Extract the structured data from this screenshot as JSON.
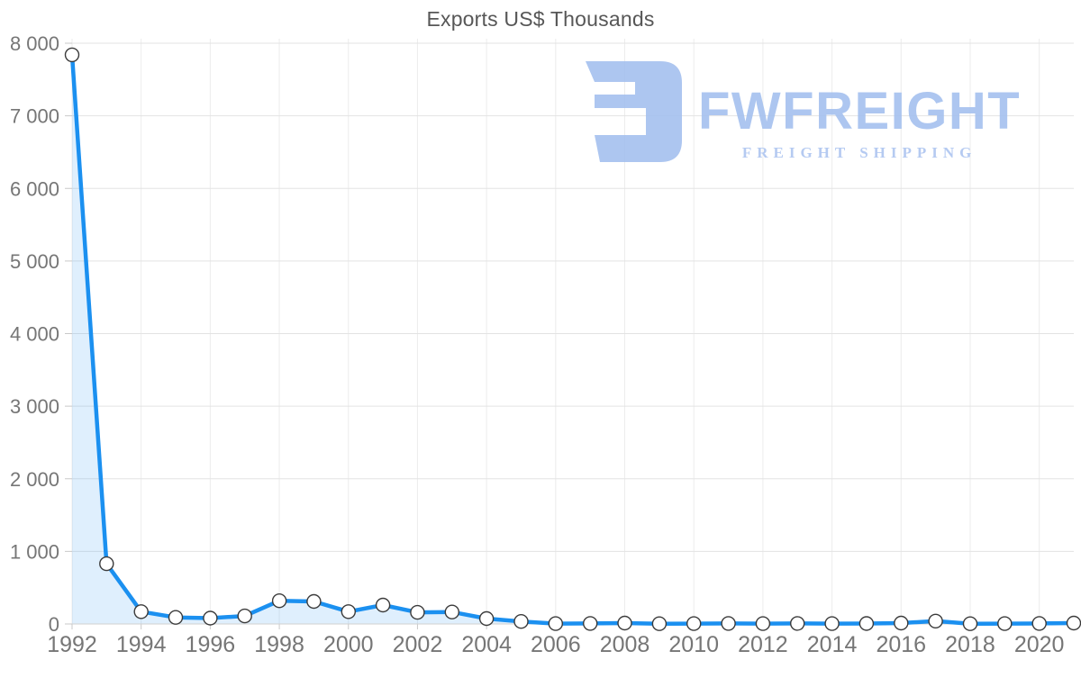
{
  "logo": {
    "brand": "FWFREIGHT",
    "tagline": "FREIGHT SHIPPING",
    "color": "#a7c2ef",
    "tagline_color": "#b0c7f1",
    "mark_icon": "freight-f-mark-icon"
  },
  "chart_data": {
    "type": "area",
    "title": "Exports US$ Thousands",
    "xlabel": "",
    "ylabel": "",
    "x": [
      1992,
      1993,
      1994,
      1995,
      1996,
      1997,
      1998,
      1999,
      2000,
      2001,
      2002,
      2003,
      2004,
      2005,
      2006,
      2007,
      2008,
      2009,
      2010,
      2011,
      2012,
      2013,
      2014,
      2015,
      2016,
      2017,
      2018,
      2019,
      2020,
      2021
    ],
    "values": [
      7840,
      830,
      170,
      90,
      80,
      110,
      320,
      310,
      170,
      260,
      160,
      165,
      75,
      35,
      5,
      8,
      12,
      4,
      5,
      8,
      5,
      8,
      5,
      6,
      12,
      40,
      4,
      5,
      8,
      12
    ],
    "ylim": [
      0,
      8000
    ],
    "y_ticks": [
      0,
      1000,
      2000,
      3000,
      4000,
      5000,
      6000,
      7000,
      8000
    ],
    "y_tick_labels": [
      "0",
      "1 000",
      "2 000",
      "3 000",
      "4 000",
      "5 000",
      "6 000",
      "7 000",
      "8 000"
    ],
    "x_ticks": [
      1992,
      1994,
      1996,
      1998,
      2000,
      2002,
      2004,
      2006,
      2008,
      2010,
      2012,
      2014,
      2016,
      2018,
      2020
    ],
    "x_tick_labels": [
      "1992",
      "1994",
      "1996",
      "1998",
      "2000",
      "2002",
      "2004",
      "2006",
      "2008",
      "2010",
      "2012",
      "2014",
      "2016",
      "2018",
      "2020"
    ],
    "grid": "on",
    "legend": "none",
    "line_color": "#1b90f0",
    "fill_color": "rgba(30, 144, 240, 0.14)",
    "marker_fill": "#ffffff",
    "marker_stroke": "#3b3b3b",
    "grid_color_h": "#e3e3e3",
    "grid_color_v": "#ececec",
    "axis_line_color": "#d0d0d0",
    "tick_color": "#c9c9c9",
    "tick_label_color": "#767676",
    "title_color": "#575757"
  }
}
